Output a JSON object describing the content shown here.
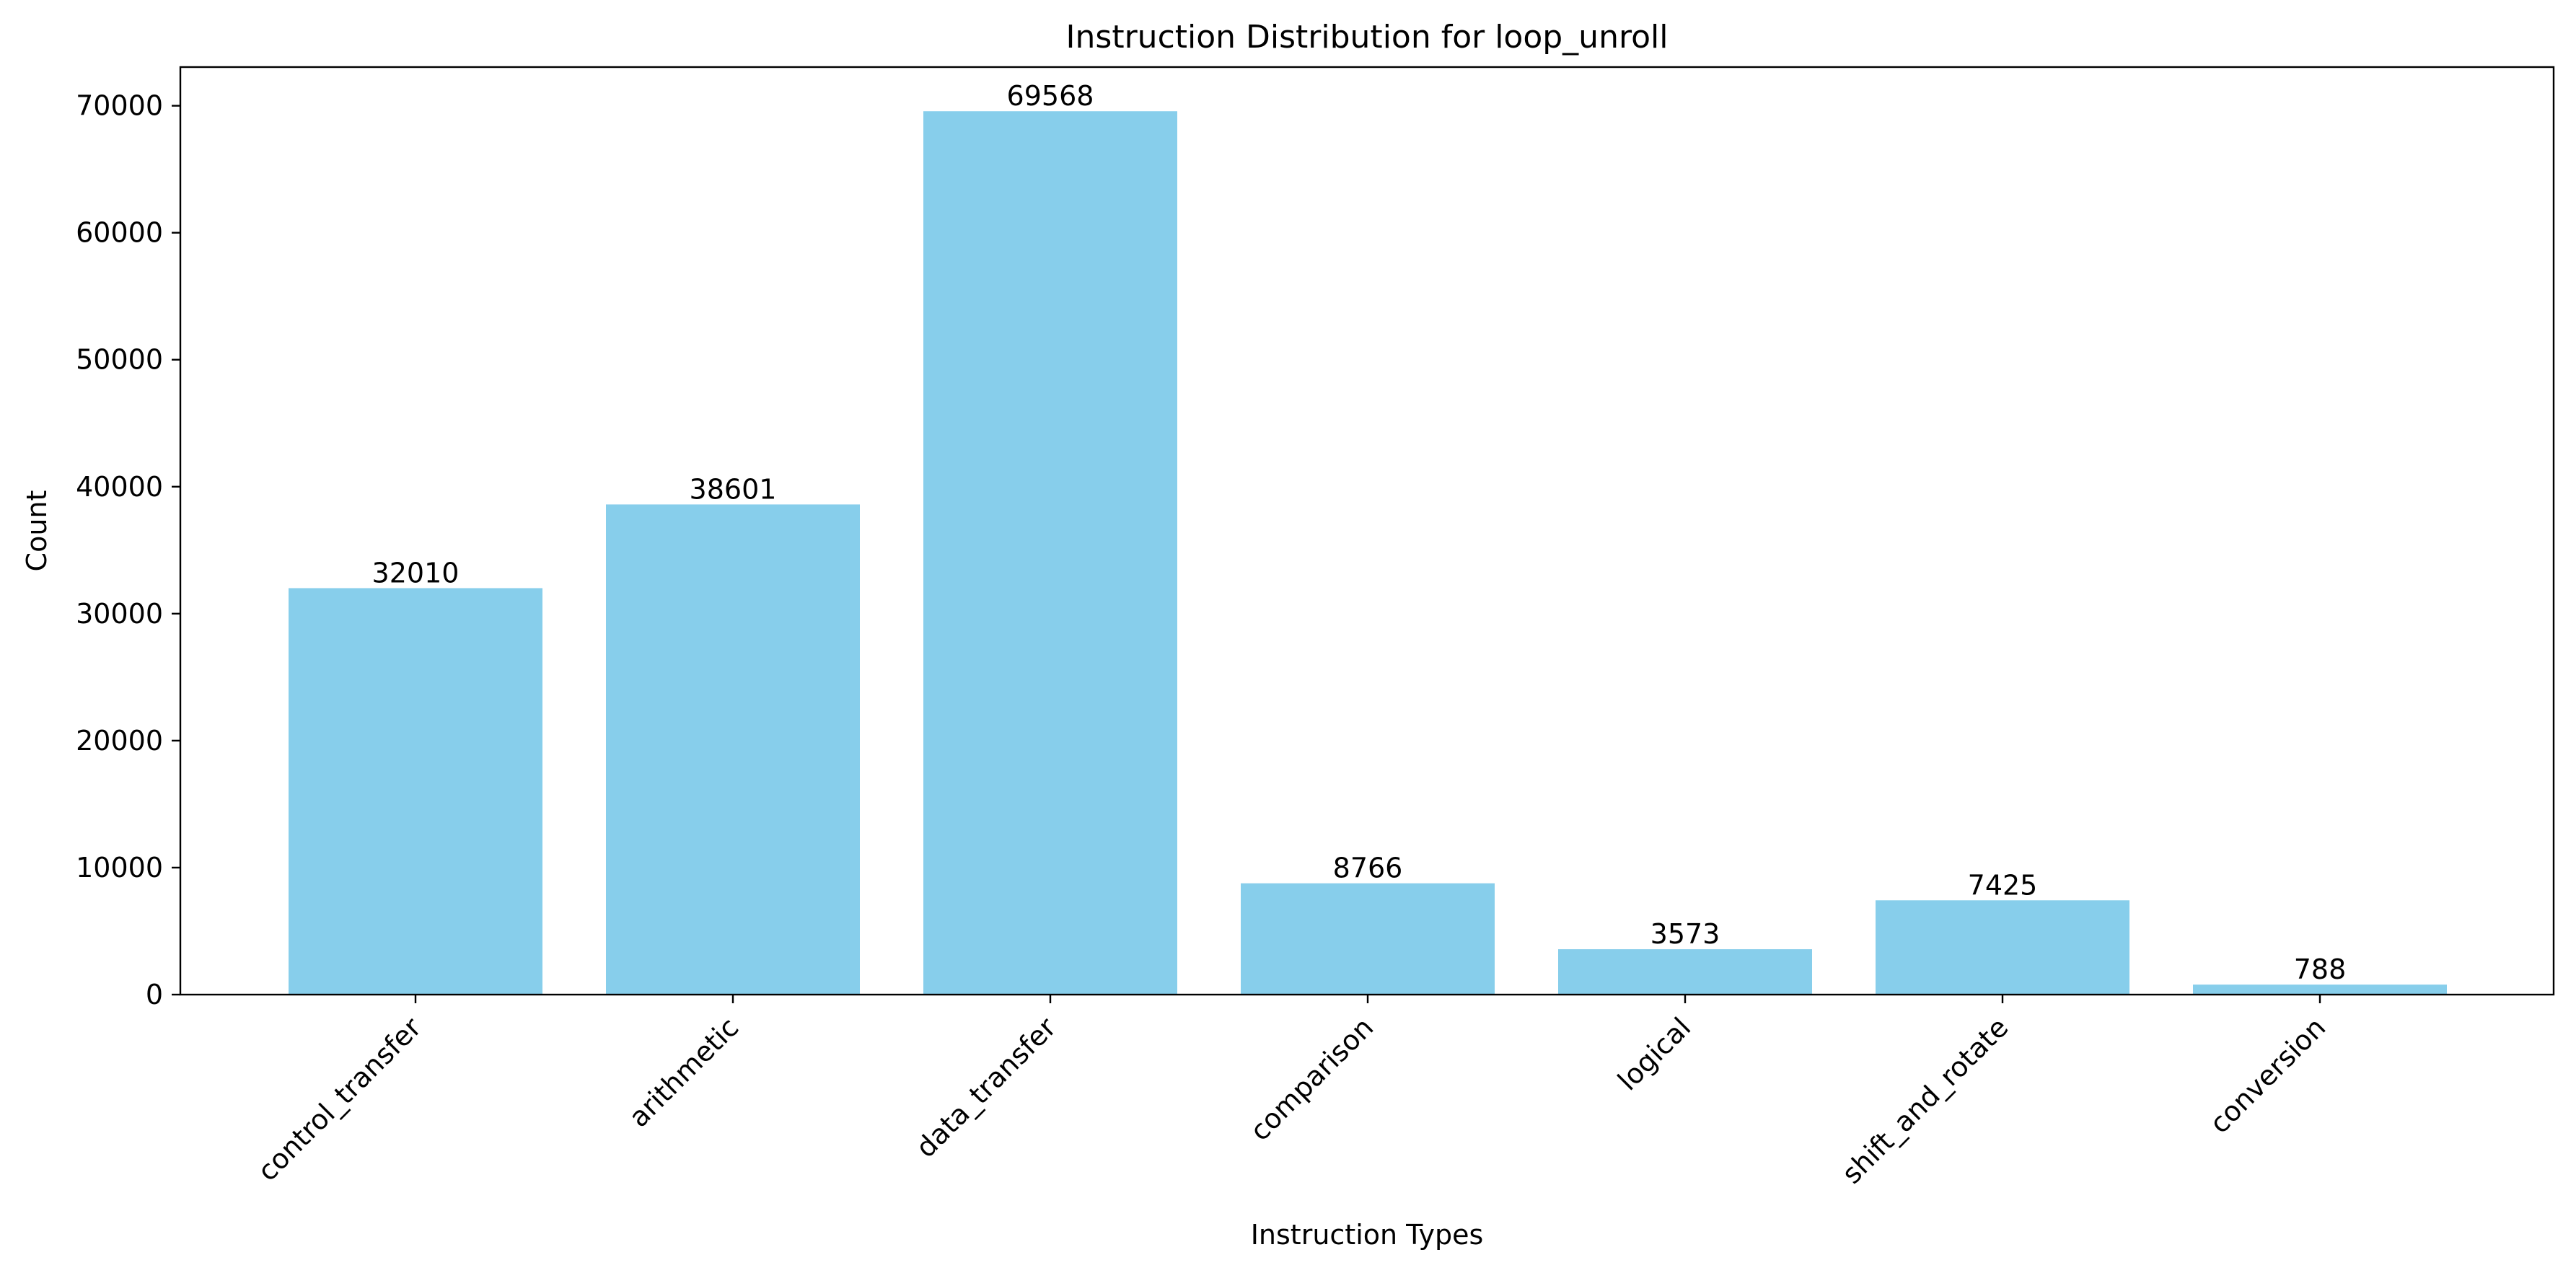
{
  "chart_data": {
    "type": "bar",
    "title": "Instruction Distribution for loop_unroll",
    "xlabel": "Instruction Types",
    "ylabel": "Count",
    "categories": [
      "control_transfer",
      "arithmetic",
      "data_transfer",
      "comparison",
      "logical",
      "shift_and_rotate",
      "conversion"
    ],
    "values": [
      32010,
      38601,
      69568,
      8766,
      3573,
      7425,
      788
    ],
    "data_labels": [
      "32010",
      "38601",
      "69568",
      "8766",
      "3573",
      "7425",
      "788"
    ],
    "ylim": [
      0,
      73046
    ],
    "yticks": [
      0,
      10000,
      20000,
      30000,
      40000,
      50000,
      60000,
      70000
    ],
    "ytick_labels": [
      "0",
      "10000",
      "20000",
      "30000",
      "40000",
      "50000",
      "60000",
      "70000"
    ],
    "bar_color": "#87CEEB",
    "grid": false,
    "legend": "none",
    "x_tick_rotation_deg": 45
  }
}
